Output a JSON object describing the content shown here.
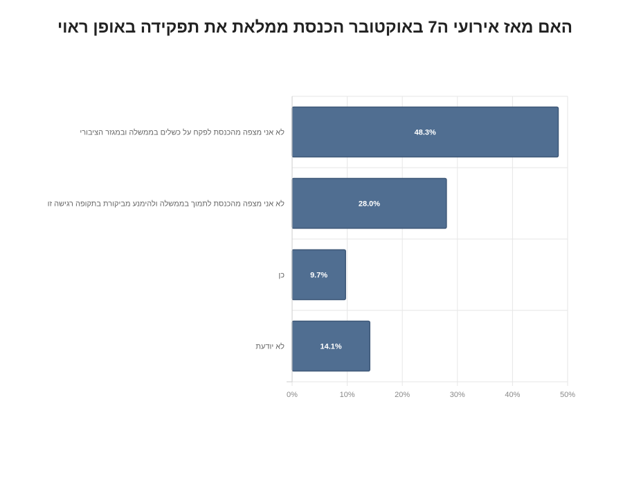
{
  "chart_data": {
    "type": "bar",
    "orientation": "horizontal",
    "title": "האם מאז אירועי ה7 באוקטובר הכנסת ממלאת את תפקידה באופן ראוי",
    "categories": [
      "לא אני מצפה מהכנסת לפקח על כשלים בממשלה ובמגזר הציבורי",
      "לא אני מצפה מהכנסת לתמוך בממשלה ולהימנע מביקורת בתקופה רגישה זו",
      "כן",
      "לא יודעת"
    ],
    "values": [
      48.3,
      28.0,
      9.7,
      14.1
    ],
    "value_labels": [
      "48.3%",
      "28.0%",
      "9.7%",
      "14.1%"
    ],
    "xlim": [
      0,
      50
    ],
    "xticks": [
      0,
      10,
      20,
      30,
      40,
      50
    ],
    "xtick_labels": [
      "0%",
      "10%",
      "20%",
      "30%",
      "40%",
      "50%"
    ],
    "grid": true,
    "bar_color": "#506e91",
    "bar_edge_color": "#3e5878",
    "grid_color": "#e6e6e6"
  }
}
